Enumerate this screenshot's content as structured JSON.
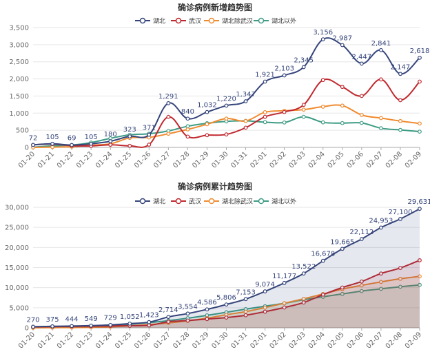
{
  "chart_data": [
    {
      "type": "line",
      "title": "确诊病例新增趋势图",
      "categories": [
        "01-20",
        "01-21",
        "01-22",
        "01-23",
        "01-24",
        "01-25",
        "01-26",
        "01-27",
        "01-28",
        "01-29",
        "01-30",
        "01-31",
        "02-01",
        "02-02",
        "02-03",
        "02-04",
        "02-05",
        "02-06",
        "02-07",
        "02-08",
        "02-09"
      ],
      "ylim": [
        0,
        3500
      ],
      "yticks": [
        "0",
        "500",
        "1,000",
        "1,500",
        "2,000",
        "2,500",
        "3,000",
        "3,500"
      ],
      "legend_position": "top-center",
      "grid": true,
      "series": [
        {
          "name": "湖北",
          "color": "#35457b",
          "values": [
            72,
            105,
            69,
            105,
            180,
            323,
            371,
            1291,
            840,
            1032,
            1220,
            1347,
            1921,
            2103,
            2345,
            3156,
            2987,
            2447,
            2841,
            2147,
            2618
          ]
        },
        {
          "name": "武汉",
          "color": "#c0282e",
          "values": [
            72,
            96,
            48,
            42,
            77,
            46,
            80,
            892,
            315,
            356,
            378,
            576,
            894,
            1033,
            1242,
            1967,
            1766,
            1501,
            1985,
            1379,
            1921
          ]
        },
        {
          "name": "湖北除武汉",
          "color": "#f08a2f",
          "values": [
            0,
            9,
            21,
            63,
            103,
            277,
            291,
            399,
            525,
            676,
            842,
            771,
            1027,
            1070,
            1103,
            1189,
            1221,
            946,
            856,
            768,
            697
          ]
        },
        {
          "name": "湖北以外",
          "color": "#3e9c84",
          "values": [
            5,
            44,
            69,
            140,
            264,
            367,
            398,
            480,
            618,
            705,
            760,
            774,
            737,
            727,
            893,
            731,
            709,
            714,
            560,
            510,
            460
          ]
        }
      ],
      "data_labels": [
        "72",
        "105",
        "69",
        "105",
        "180",
        "323",
        "371",
        "1,291",
        "840",
        "1,032",
        "1,220",
        "1,347",
        "1,921",
        "2,103",
        "2,345",
        "3,156",
        "2,987",
        "2,447",
        "2,841",
        "2,147",
        "2,618"
      ]
    },
    {
      "type": "area",
      "title": "确诊病例累计趋势图",
      "categories": [
        "01-20",
        "01-21",
        "01-22",
        "01-23",
        "01-24",
        "01-25",
        "01-26",
        "01-27",
        "01-28",
        "01-29",
        "01-30",
        "01-31",
        "02-01",
        "02-02",
        "02-03",
        "02-04",
        "02-05",
        "02-06",
        "02-07",
        "02-08",
        "02-09"
      ],
      "ylim": [
        0,
        30000
      ],
      "yticks": [
        "0",
        "5,000",
        "10,000",
        "15,000",
        "20,000",
        "25,000",
        "30,000"
      ],
      "legend_position": "top-center",
      "grid": true,
      "series": [
        {
          "name": "湖北",
          "color": "#35457b",
          "values": [
            270,
            375,
            444,
            549,
            729,
            1052,
            1423,
            2714,
            3554,
            4586,
            5806,
            7153,
            9074,
            11177,
            13522,
            16678,
            19665,
            22112,
            24953,
            27100,
            29631
          ]
        },
        {
          "name": "武汉",
          "color": "#c0282e",
          "values": [
            258,
            320,
            368,
            410,
            487,
            533,
            613,
            1505,
            1820,
            2176,
            2554,
            3130,
            4024,
            5057,
            6299,
            8266,
            10032,
            11533,
            13518,
            14897,
            16818
          ]
        },
        {
          "name": "湖北除武汉",
          "color": "#f08a2f",
          "values": [
            12,
            55,
            76,
            139,
            242,
            519,
            810,
            1209,
            1734,
            2410,
            3252,
            4023,
            5050,
            6120,
            7223,
            8412,
            9633,
            10579,
            11435,
            12203,
            12813
          ]
        },
        {
          "name": "湖北以外",
          "color": "#3e9c84",
          "values": [
            21,
            65,
            134,
            274,
            538,
            905,
            1303,
            1783,
            2401,
            3106,
            3866,
            4640,
            5377,
            6104,
            6997,
            7728,
            8437,
            9151,
            9711,
            10221,
            10681
          ]
        }
      ],
      "data_labels": [
        "270",
        "375",
        "444",
        "549",
        "729",
        "1,052",
        "1,423",
        "2,714",
        "3,554",
        "4,586",
        "5,806",
        "7,153",
        "9,074",
        "11,177",
        "13,522",
        "16,678",
        "19,665",
        "22,112",
        "24,953",
        "27,100",
        "29,631"
      ]
    }
  ]
}
